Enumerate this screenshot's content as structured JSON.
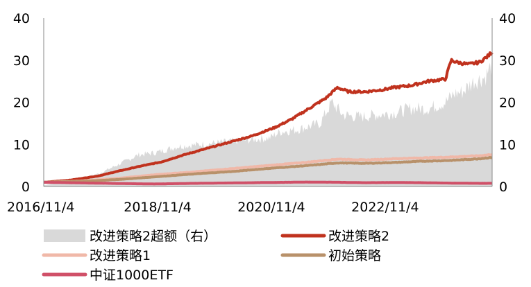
{
  "chart_data": {
    "type": "line",
    "title": "",
    "xlabel": "",
    "ylabel": "",
    "ylim_left": [
      0,
      40
    ],
    "ylim_right": [
      0,
      40
    ],
    "y_ticks": [
      "0",
      "10",
      "20",
      "30",
      "40"
    ],
    "x_tick_labels": [
      "2016/11/4",
      "2018/11/4",
      "2020/11/4",
      "2022/11/4"
    ],
    "x_range": [
      2016.84,
      2024.72
    ],
    "x_ticks": [
      2016.84,
      2018.84,
      2020.84,
      2022.84
    ],
    "grid": false,
    "legend_position": "bottom",
    "series": [
      {
        "name": "改进策略2超额（右）",
        "type": "area",
        "axis": "right",
        "color": "#d9d9d9",
        "x": [
          2016.84,
          2017.3,
          2017.8,
          2018.2,
          2018.5,
          2018.8,
          2019.2,
          2019.6,
          2020.0,
          2020.4,
          2020.8,
          2021.0,
          2021.3,
          2021.7,
          2021.9,
          2022.1,
          2022.4,
          2022.7,
          2023.0,
          2023.3,
          2023.6,
          2023.9,
          2024.05,
          2024.2,
          2024.4,
          2024.6,
          2024.72
        ],
        "values": [
          0.3,
          1.5,
          3.0,
          5.5,
          7.5,
          8.0,
          9.5,
          10.0,
          10.5,
          11.0,
          11.5,
          13.0,
          13.5,
          15.0,
          20.0,
          17.0,
          16.5,
          17.0,
          17.5,
          18.5,
          18.5,
          20.0,
          22.0,
          22.5,
          25.0,
          26.0,
          29.0
        ]
      },
      {
        "name": "改进策略2",
        "type": "line",
        "axis": "left",
        "color": "#c0321e",
        "x": [
          2016.84,
          2017.3,
          2017.8,
          2018.2,
          2018.6,
          2018.9,
          2019.3,
          2019.7,
          2020.1,
          2020.5,
          2020.9,
          2021.2,
          2021.5,
          2021.8,
          2022.0,
          2022.2,
          2022.5,
          2022.8,
          2023.0,
          2023.3,
          2023.6,
          2023.9,
          2024.0,
          2024.1,
          2024.3,
          2024.5,
          2024.65,
          2024.72
        ],
        "values": [
          1.0,
          1.5,
          2.5,
          3.8,
          5.0,
          5.8,
          7.5,
          9.0,
          10.5,
          12.0,
          14.0,
          16.0,
          18.5,
          21.0,
          23.5,
          22.5,
          22.5,
          23.0,
          23.5,
          24.0,
          25.0,
          25.5,
          30.0,
          29.5,
          29.0,
          29.5,
          31.0,
          32.0
        ]
      },
      {
        "name": "改进策略1",
        "type": "line",
        "axis": "left",
        "color": "#f0b8a8",
        "x": [
          2016.84,
          2017.5,
          2018.2,
          2018.8,
          2019.5,
          2020.2,
          2020.8,
          2021.5,
          2022.0,
          2022.5,
          2023.0,
          2023.5,
          2024.0,
          2024.5,
          2024.72
        ],
        "values": [
          1.0,
          1.3,
          2.0,
          2.8,
          3.5,
          4.3,
          5.0,
          5.8,
          6.5,
          6.3,
          6.6,
          6.8,
          7.0,
          7.3,
          7.6
        ]
      },
      {
        "name": "初始策略",
        "type": "line",
        "axis": "left",
        "color": "#b8916a",
        "x": [
          2016.84,
          2017.5,
          2018.2,
          2018.8,
          2019.5,
          2020.2,
          2020.8,
          2021.5,
          2022.0,
          2022.5,
          2023.0,
          2023.5,
          2024.0,
          2024.5,
          2024.72
        ],
        "values": [
          1.0,
          1.2,
          1.7,
          2.3,
          3.0,
          3.6,
          4.3,
          5.0,
          5.6,
          5.5,
          5.7,
          6.0,
          6.2,
          6.6,
          6.9
        ]
      },
      {
        "name": "中证1000ETF",
        "type": "line",
        "axis": "left",
        "color": "#d05068",
        "x": [
          2016.84,
          2017.5,
          2018.2,
          2018.8,
          2019.5,
          2020.2,
          2020.8,
          2021.5,
          2022.0,
          2022.5,
          2023.0,
          2023.5,
          2024.0,
          2024.5,
          2024.72
        ],
        "values": [
          1.0,
          0.85,
          0.7,
          0.6,
          0.75,
          0.85,
          0.95,
          1.05,
          1.0,
          0.9,
          0.95,
          0.9,
          0.8,
          0.75,
          0.75
        ]
      }
    ]
  }
}
